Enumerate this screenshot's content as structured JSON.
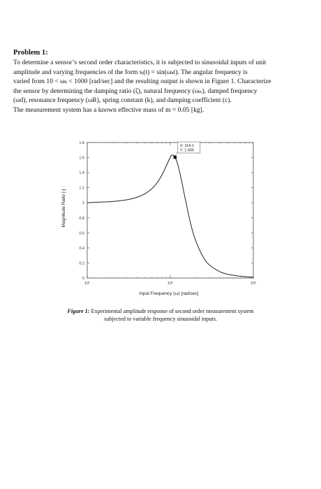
{
  "problem": {
    "heading": "Problem 1:",
    "lines": [
      "To determine a sensor’s second order characteristics, it is subjected to sinusoidal inputs of unit",
      "amplitude and varying frequencies of the form sᵢ(t) = sin(ωₖt). The angular frequency is",
      "varied from 10 < ωₖ < 1000 [rad/sec] and the resulting output is shown in Figure 1. Characterize",
      "the sensor by determining the damping ratio (ζ), natural frequency (ωₙ), damped frequency",
      "(ωd), resonance frequency (ωR), spring constant (k), and damping coefficient (c).",
      "The measurement system has a known effective mass of m = 0.05 [kg]."
    ]
  },
  "chart_data": {
    "type": "line",
    "xlabel": "Input Frequency (ω) [rad/sec]",
    "ylabel": "Magnitude Ratio [-]",
    "xscale": "log",
    "xlim": [
      10,
      1000
    ],
    "ylim": [
      0,
      1.8
    ],
    "xticks": [
      10,
      100,
      1000
    ],
    "xtick_labels": [
      "10¹",
      "10²",
      "10³"
    ],
    "yticks": [
      0,
      0.2,
      0.4,
      0.6,
      0.8,
      1,
      1.2,
      1.4,
      1.6,
      1.8
    ],
    "ytick_labels": [
      "0",
      "0.2",
      "0.4",
      "0.6",
      "0.8",
      "1",
      "1.2",
      "1.4",
      "1.6",
      "1.8"
    ],
    "grid": false,
    "series": [
      {
        "x": [
          10,
          15,
          20,
          30,
          40,
          50,
          60,
          70,
          80,
          90,
          100,
          105,
          110,
          114.1,
          120,
          125,
          130,
          140,
          150,
          175,
          200,
          250,
          300,
          400,
          500,
          700,
          1000
        ],
        "y": [
          1.0,
          1.01,
          1.016,
          1.039,
          1.074,
          1.122,
          1.186,
          1.27,
          1.376,
          1.494,
          1.604,
          1.633,
          1.628,
          1.605,
          1.548,
          1.482,
          1.404,
          1.24,
          1.075,
          0.734,
          0.511,
          0.276,
          0.169,
          0.082,
          0.049,
          0.024,
          0.011
        ]
      }
    ],
    "datatip": {
      "x_label": "X: 114.1",
      "y_label": "Y: 1.605",
      "x": 114.1,
      "y": 1.605
    }
  },
  "caption": {
    "label": "Figure 1:",
    "text": " Experimental amplitude response of second order measurement system subjected to variable frequency sinusoidal inputs."
  }
}
